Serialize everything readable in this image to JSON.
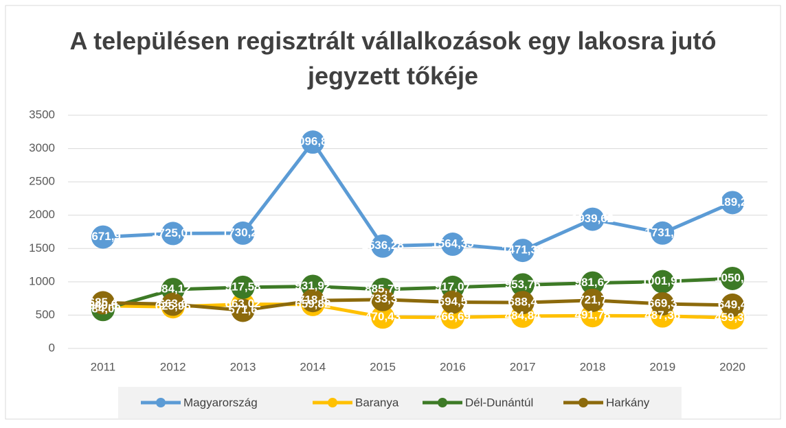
{
  "chart_data": {
    "type": "line",
    "title": "A településen regisztrált vállalkozások egy lakosra jutó jegyzett tőkéje",
    "categories": [
      "2011",
      "2012",
      "2013",
      "2014",
      "2015",
      "2016",
      "2017",
      "2018",
      "2019",
      "2020"
    ],
    "ylim": [
      0,
      3500
    ],
    "yticks": [
      0,
      500,
      1000,
      1500,
      2000,
      2500,
      3000,
      3500
    ],
    "grid": true,
    "legend": "bottom",
    "series": [
      {
        "name": "Magyarország",
        "color": "#5b9bd5",
        "values": [
          1671.9,
          1725.01,
          1730.28,
          3096.81,
          1536.28,
          1564.35,
          1471.38,
          1939.62,
          1731.4,
          2189.21
        ],
        "value_labels": [
          "1671,9",
          "1725,01",
          "1730,28",
          "3096,81",
          "1536,28",
          "1564,35",
          "1471,38",
          "1939,62",
          "1731,4",
          "2189,21"
        ]
      },
      {
        "name": "Baranya",
        "color": "#ffc000",
        "values": [
          640.5,
          625.96,
          663.02,
          659.82,
          470.43,
          466.69,
          484.84,
          491.78,
          487.36,
          459.36
        ],
        "value_labels": [
          "640,5",
          "625,96",
          "663,02",
          "659,82",
          "470,43",
          "466,69",
          "484,84",
          "491,78",
          "487,36",
          "459,36"
        ]
      },
      {
        "name": "Dél-Dunántúl",
        "color": "#3d7a26",
        "values": [
          584.09,
          884.12,
          917.58,
          931.92,
          885.79,
          917.07,
          953.76,
          981.62,
          1001.91,
          1050.2
        ],
        "value_labels": [
          "584,09",
          "884,12",
          "917,58",
          "931,92",
          "885,79",
          "917,07",
          "953,76",
          "981,62",
          "1001,91",
          "1050,2"
        ]
      },
      {
        "name": "Harkány",
        "color": "#8c6a0c",
        "values": [
          685.4,
          663.6,
          571.6,
          718.5,
          733.3,
          694.5,
          688.4,
          721.7,
          669.3,
          649.4
        ],
        "value_labels": [
          "685,4",
          "663,6",
          "571,6",
          "718,5",
          "733,3",
          "694,5",
          "688,4",
          "721,7",
          "669,3",
          "649,4"
        ]
      }
    ]
  }
}
